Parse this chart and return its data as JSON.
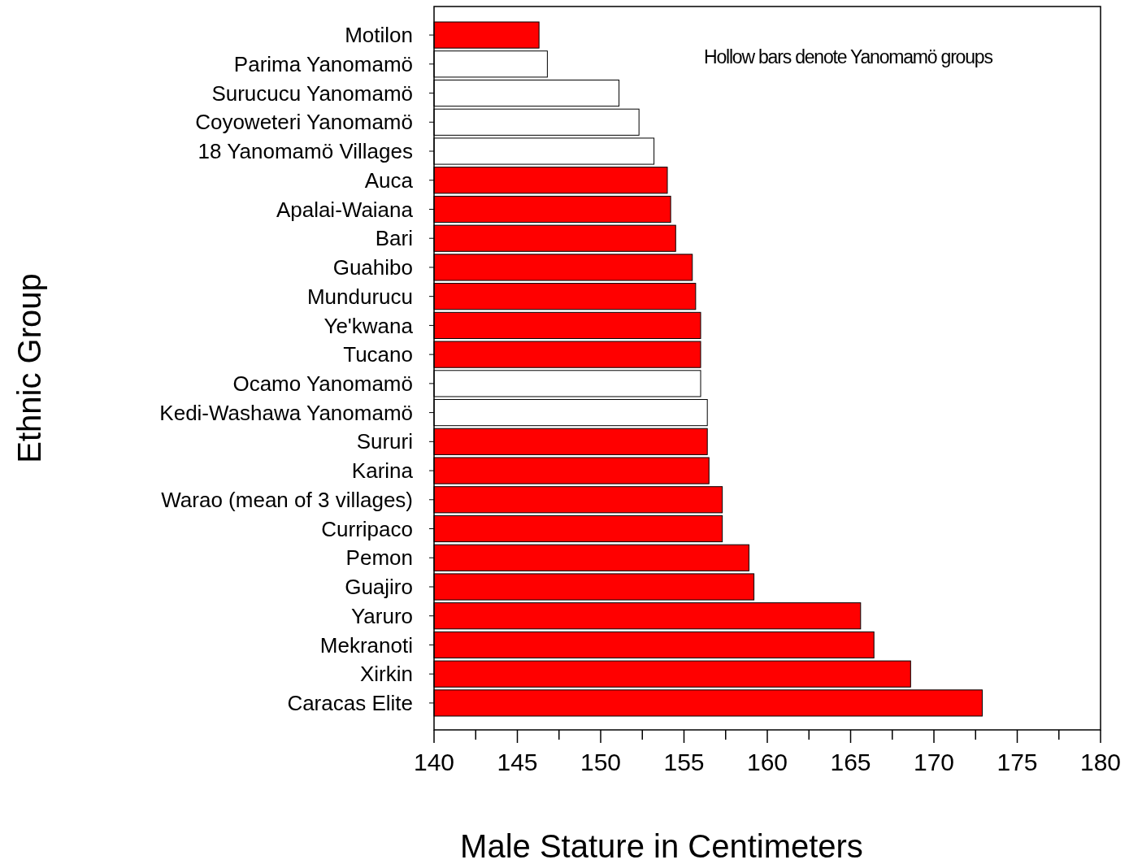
{
  "chart_data": {
    "type": "bar",
    "orientation": "horizontal",
    "xlabel": "Male Stature in Centimeters",
    "ylabel": "Ethnic Group",
    "categories": [
      "Motilon",
      "Parima Yanomamö",
      "Surucucu Yanomamö",
      "Coyoweteri Yanomamö",
      "18 Yanomamö Villages",
      "Auca",
      "Apalai-Waiana",
      "Bari",
      "Guahibo",
      "Mundurucu",
      "Ye'kwana",
      "Tucano",
      "Ocamo Yanomamö",
      "Kedi-Washawa Yanomamö",
      "Sururi",
      "Karina",
      "Warao (mean of 3 villages)",
      "Curripaco",
      "Pemon",
      "Guajiro",
      "Yaruro",
      "Mekranoti",
      "Xirkin",
      "Caracas Elite"
    ],
    "values": [
      146.3,
      146.8,
      151.1,
      152.3,
      153.2,
      154.0,
      154.2,
      154.5,
      155.5,
      155.7,
      156.0,
      156.0,
      156.0,
      156.4,
      156.4,
      156.5,
      157.3,
      157.3,
      158.9,
      159.2,
      165.6,
      166.4,
      168.6,
      172.9
    ],
    "colors": [
      "#ff0000",
      "#ffffff",
      "#ffffff",
      "#ffffff",
      "#ffffff",
      "#ff0000",
      "#ff0000",
      "#ff0000",
      "#ff0000",
      "#ff0000",
      "#ff0000",
      "#ff0000",
      "#ffffff",
      "#ffffff",
      "#ff0000",
      "#ff0000",
      "#ff0000",
      "#ff0000",
      "#ff0000",
      "#ff0000",
      "#ff0000",
      "#ff0000",
      "#ff0000",
      "#ff0000"
    ],
    "xlim": [
      140,
      180
    ],
    "xticks": [
      140,
      {
        "value": 142.5,
        "label": null
      },
      145,
      {
        "value": 147.5,
        "label": null
      },
      150,
      {
        "value": 152.5,
        "label": null
      },
      155,
      {
        "value": 157.5,
        "label": null
      },
      160,
      {
        "value": 162.5,
        "label": null
      },
      165,
      {
        "value": 167.5,
        "label": null
      },
      170,
      {
        "value": 172.5,
        "label": null
      },
      175,
      {
        "value": 177.5,
        "label": null
      },
      180
    ],
    "annotations": [
      "Hollow bars denote Yanomamö groups"
    ],
    "grid": false
  }
}
